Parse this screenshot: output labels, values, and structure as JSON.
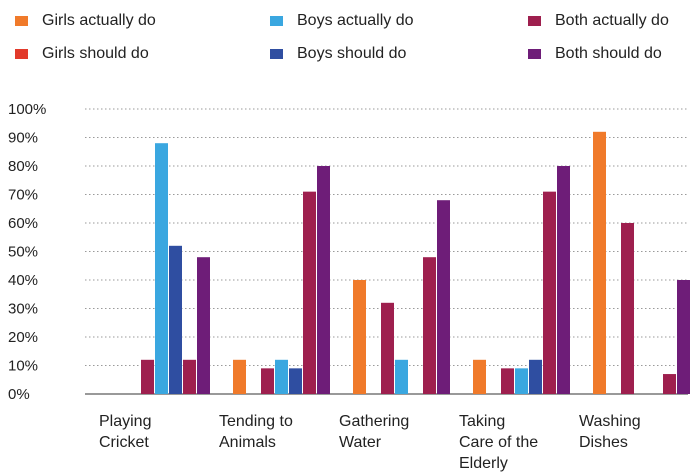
{
  "chart_data": {
    "type": "bar",
    "categories": [
      [
        "Playing",
        "Cricket"
      ],
      [
        "Tending to",
        "Animals"
      ],
      [
        "Gathering",
        "Water"
      ],
      [
        "Taking",
        "Care of the",
        "Elderly"
      ],
      [
        "Washing",
        "Dishes"
      ]
    ],
    "series": [
      {
        "name": "Girls actually do",
        "color": "#F07A2A",
        "values": [
          0,
          12,
          40,
          12,
          92
        ]
      },
      {
        "name": "Girls should do",
        "color": "#E23A2B",
        "values": [
          0,
          0,
          0,
          0,
          0
        ]
      },
      {
        "name": "Both actually do",
        "color": "#9E1F4E",
        "values": [
          12,
          9,
          32,
          9,
          60
        ]
      },
      {
        "name": "Boys actually do",
        "color": "#3AA7E0",
        "values": [
          88,
          12,
          12,
          9,
          0
        ]
      },
      {
        "name": "Boys should do",
        "color": "#2F4EA1",
        "values": [
          52,
          9,
          0,
          12,
          0
        ]
      },
      {
        "name": "Both actually do",
        "color": "#9E1F4E",
        "values": [
          12,
          71,
          48,
          71,
          7
        ]
      },
      {
        "name": "Both should do",
        "color": "#6E1D78",
        "values": [
          48,
          80,
          68,
          80,
          40
        ]
      }
    ],
    "legend": [
      {
        "name": "Girls actually do",
        "color": "#F07A2A"
      },
      {
        "name": "Boys actually do",
        "color": "#3AA7E0"
      },
      {
        "name": "Both actually do",
        "color": "#9E1F4E"
      },
      {
        "name": "Girls should do",
        "color": "#E23A2B"
      },
      {
        "name": "Boys should do",
        "color": "#2F4EA1"
      },
      {
        "name": "Both should do",
        "color": "#6E1D78"
      }
    ],
    "ylim": [
      0,
      100
    ],
    "yticks": [
      "0%",
      "10%",
      "20%",
      "30%",
      "40%",
      "50%",
      "60%",
      "70%",
      "80%",
      "90%",
      "100%"
    ],
    "grid": "horizontal-dotted",
    "legend_position": "top"
  }
}
